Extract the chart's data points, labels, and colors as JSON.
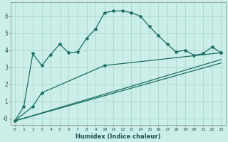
{
  "title": "",
  "xlabel": "Humidex (Indice chaleur)",
  "ylabel": "",
  "bg_color": "#cceee8",
  "grid_color": "#aad8d0",
  "line_color": "#1a6e62",
  "xlim": [
    -0.5,
    23.5
  ],
  "ylim": [
    -0.4,
    6.8
  ],
  "xtick_labels": [
    "0",
    "1",
    "2",
    "3",
    "4",
    "5",
    "6",
    "7",
    "8",
    "9",
    "10",
    "11",
    "12",
    "13",
    "14",
    "15",
    "16",
    "17",
    "18",
    "19",
    "20",
    "21",
    "22",
    "23"
  ],
  "ytick_labels": [
    "-0",
    "1",
    "2",
    "3",
    "4",
    "5",
    "6"
  ],
  "ytick_values": [
    0,
    1,
    2,
    3,
    4,
    5,
    6
  ],
  "curve1_x": [
    0,
    1,
    2,
    3,
    4,
    5,
    6,
    7,
    8,
    9,
    10,
    11,
    12,
    13,
    14,
    15,
    16,
    17,
    18,
    19,
    20,
    21,
    22,
    23
  ],
  "curve1_y": [
    -0.15,
    0.7,
    3.8,
    3.1,
    3.75,
    4.35,
    3.85,
    3.9,
    4.7,
    5.25,
    6.2,
    6.3,
    6.3,
    6.2,
    6.0,
    5.4,
    4.85,
    4.35,
    3.9,
    4.0,
    3.7,
    3.8,
    4.2,
    3.85
  ],
  "curve2_x": [
    0,
    2,
    3,
    10,
    23
  ],
  "curve2_y": [
    -0.15,
    0.7,
    1.5,
    3.1,
    3.85
  ],
  "curve3_x": [
    0,
    23
  ],
  "curve3_y": [
    -0.15,
    3.45
  ],
  "curve4_x": [
    0,
    23
  ],
  "curve4_y": [
    -0.15,
    3.25
  ],
  "marker": "*",
  "markersize": 3.0,
  "linewidth": 0.9
}
